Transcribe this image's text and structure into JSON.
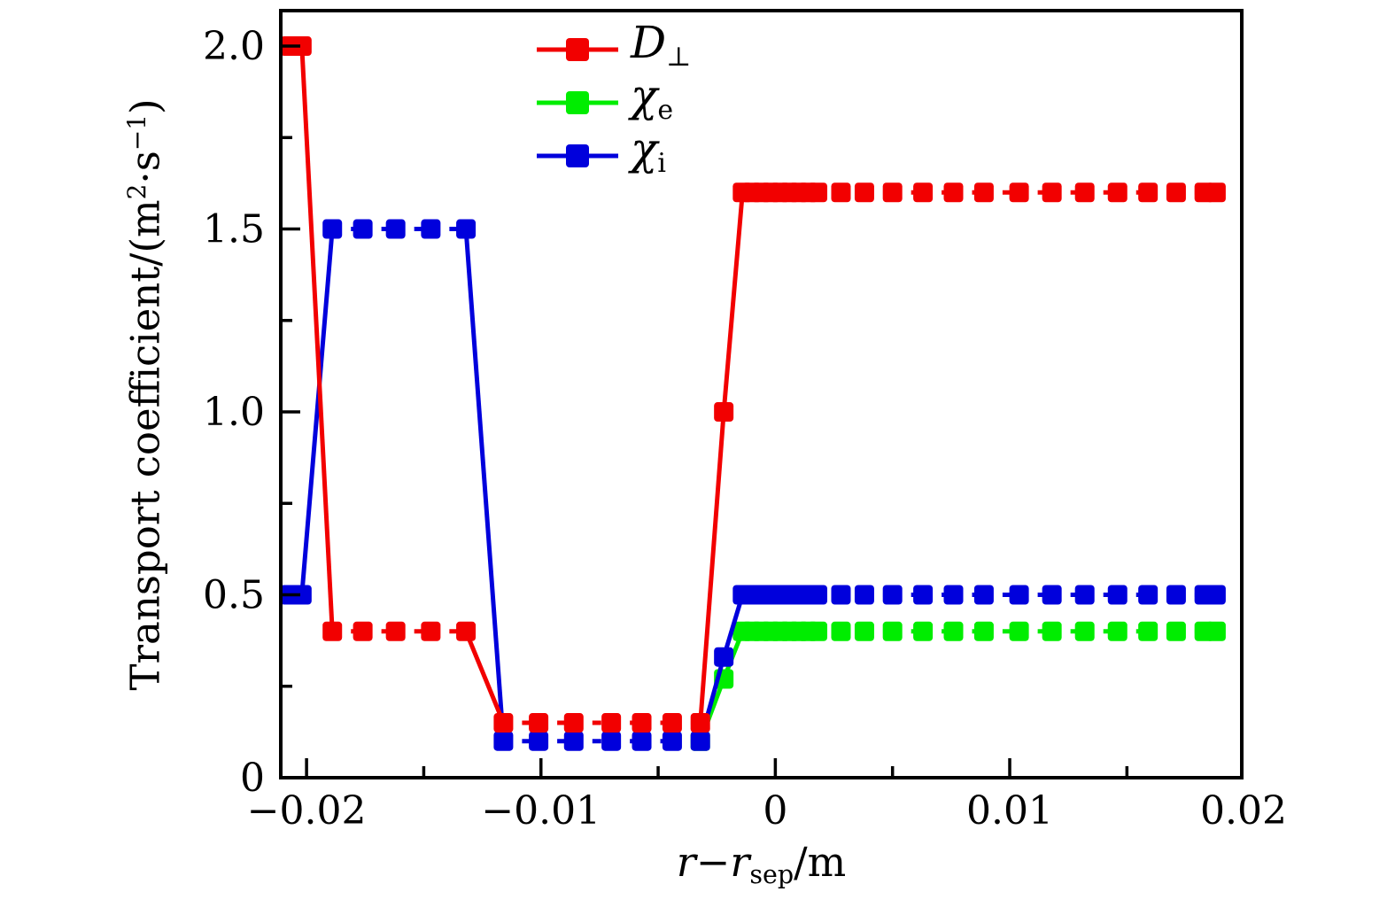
{
  "figure": {
    "background": "#ffffff",
    "frame_color": "#000000",
    "text_color": "#000000"
  },
  "y_axis": {
    "title_pre": "Transport coefficient/(m",
    "title_sup_1": "2",
    "title_mid": "·s",
    "title_sup_2": "−1",
    "title_post": ")"
  },
  "x_axis": {
    "title_math": "r−r",
    "title_sub": "sep",
    "title_post": "/m"
  },
  "chart_data": {
    "type": "line",
    "title": "",
    "xlabel": "r − r_sep /m",
    "ylabel": "Transport coefficient/(m^2·s^−1)",
    "xlim": [
      -0.0211,
      0.0199
    ],
    "ylim": [
      0,
      2.097
    ],
    "grid": false,
    "legend_position": "top-center",
    "x_major_ticks": [
      {
        "v": -0.02,
        "label": "−0.02"
      },
      {
        "v": -0.01,
        "label": "−0.01"
      },
      {
        "v": 0,
        "label": "0"
      },
      {
        "v": 0.01,
        "label": "0.01"
      },
      {
        "v": 0.02,
        "label": "0.02"
      }
    ],
    "x_minor_ticks": [
      -0.015,
      -0.005,
      0.005,
      0.015
    ],
    "y_major_ticks": [
      {
        "v": 0,
        "label": "0"
      },
      {
        "v": 0.5,
        "label": "0.5"
      },
      {
        "v": 1,
        "label": "1.0"
      },
      {
        "v": 1.5,
        "label": "1.5"
      },
      {
        "v": 2,
        "label": "2.0"
      }
    ],
    "y_minor_ticks": [
      0.25,
      0.75,
      1.25,
      1.75
    ],
    "series": [
      {
        "name": "D_perp",
        "name_main": "D",
        "name_sub": "⊥",
        "color": "#f20000",
        "marker": "square",
        "x": [
          -0.0207,
          -0.0202,
          -0.0189,
          -0.0176,
          -0.0162,
          -0.0147,
          -0.0132,
          -0.0116,
          -0.0101,
          -0.0086,
          -0.007,
          -0.0057,
          -0.0044,
          -0.0032,
          -0.0022,
          -0.0014,
          -0.001,
          -0.0006,
          -0.0002,
          0.0002,
          0.0006,
          0.001,
          0.0014,
          0.0018,
          0.0028,
          0.0038,
          0.005,
          0.0063,
          0.0076,
          0.0089,
          0.0104,
          0.0118,
          0.0132,
          0.0146,
          0.0159,
          0.0171,
          0.0183,
          0.0188
        ],
        "y": [
          2.0,
          2.0,
          0.4,
          0.4,
          0.4,
          0.4,
          0.4,
          0.15,
          0.15,
          0.15,
          0.15,
          0.15,
          0.15,
          0.15,
          1.0,
          1.6,
          1.6,
          1.6,
          1.6,
          1.6,
          1.6,
          1.6,
          1.6,
          1.6,
          1.6,
          1.6,
          1.6,
          1.6,
          1.6,
          1.6,
          1.6,
          1.6,
          1.6,
          1.6,
          1.6,
          1.6,
          1.6,
          1.6
        ]
      },
      {
        "name": "chi_e",
        "name_main": "χ",
        "name_sub": "e",
        "color": "#00ed00",
        "marker": "square",
        "x": [
          -0.0032,
          -0.0022,
          -0.0014,
          -0.001,
          -0.0006,
          -0.0002,
          0.0002,
          0.0006,
          0.001,
          0.0014,
          0.0018,
          0.0028,
          0.0038,
          0.005,
          0.0063,
          0.0076,
          0.0089,
          0.0104,
          0.0118,
          0.0132,
          0.0146,
          0.0159,
          0.0171,
          0.0183,
          0.0188
        ],
        "y": [
          0.1,
          0.27,
          0.4,
          0.4,
          0.4,
          0.4,
          0.4,
          0.4,
          0.4,
          0.4,
          0.4,
          0.4,
          0.4,
          0.4,
          0.4,
          0.4,
          0.4,
          0.4,
          0.4,
          0.4,
          0.4,
          0.4,
          0.4,
          0.4,
          0.4
        ]
      },
      {
        "name": "chi_i",
        "name_main": "χ",
        "name_sub": "i",
        "color": "#0000dc",
        "marker": "square",
        "x": [
          -0.0207,
          -0.0202,
          -0.0189,
          -0.0176,
          -0.0162,
          -0.0147,
          -0.0132,
          -0.0116,
          -0.0101,
          -0.0086,
          -0.007,
          -0.0057,
          -0.0044,
          -0.0032,
          -0.0022,
          -0.0014,
          -0.001,
          -0.0006,
          -0.0002,
          0.0002,
          0.0006,
          0.001,
          0.0014,
          0.0018,
          0.0028,
          0.0038,
          0.005,
          0.0063,
          0.0076,
          0.0089,
          0.0104,
          0.0118,
          0.0132,
          0.0146,
          0.0159,
          0.0171,
          0.0183,
          0.0188
        ],
        "y": [
          0.5,
          0.5,
          1.5,
          1.5,
          1.5,
          1.5,
          1.5,
          0.1,
          0.1,
          0.1,
          0.1,
          0.1,
          0.1,
          0.1,
          0.33,
          0.5,
          0.5,
          0.5,
          0.5,
          0.5,
          0.5,
          0.5,
          0.5,
          0.5,
          0.5,
          0.5,
          0.5,
          0.5,
          0.5,
          0.5,
          0.5,
          0.5,
          0.5,
          0.5,
          0.5,
          0.5,
          0.5,
          0.5
        ]
      }
    ]
  }
}
